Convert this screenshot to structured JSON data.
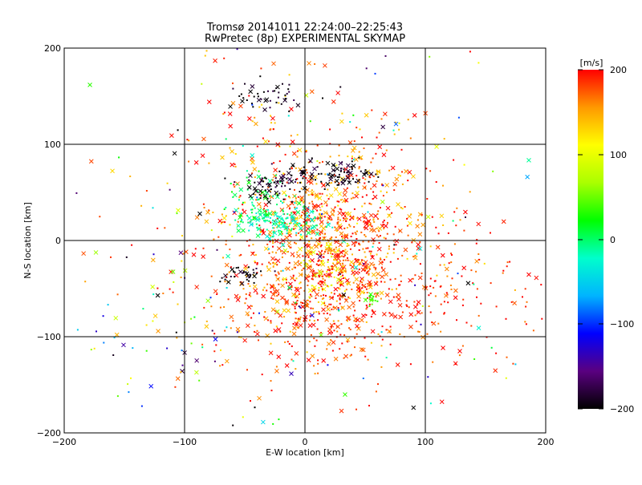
{
  "chart_data": {
    "type": "scatter",
    "title": "Tromsø 20141011 22:24:00–22:25:43",
    "subtitle": "RwPretec (8p) EXPERIMENTAL SKYMAP",
    "xlabel": "E-W location [km]",
    "ylabel": "N-S location [km]",
    "xlim": [
      -200,
      200
    ],
    "ylim": [
      -200,
      200
    ],
    "xticks": [
      "−200",
      "−100",
      "0",
      "100",
      "200"
    ],
    "yticks": [
      "−200",
      "−100",
      "0",
      "100",
      "200"
    ],
    "grid": true,
    "colorbar": {
      "unit": "[m/s]",
      "range": [
        -200,
        200
      ],
      "ticks": [
        "200",
        "100",
        "0",
        "−100",
        "−200"
      ],
      "colors": [
        "#000000",
        "#5a0080",
        "#0000ff",
        "#00b4ff",
        "#00ffcc",
        "#00ff00",
        "#aaff00",
        "#ffff00",
        "#ff9900",
        "#ff0000"
      ]
    },
    "marker_styles": [
      "cross",
      "dot"
    ],
    "clusters": [
      {
        "x": 20,
        "y": -20,
        "sx": 30,
        "sy": 45,
        "n": 650,
        "v": [
          130,
          220
        ]
      },
      {
        "x": 0,
        "y": 40,
        "sx": 55,
        "sy": 55,
        "n": 450,
        "v": [
          120,
          220
        ]
      },
      {
        "x": 90,
        "y": -50,
        "sx": 60,
        "sy": 45,
        "n": 260,
        "v": [
          160,
          220
        ]
      },
      {
        "x": -30,
        "y": -60,
        "sx": 40,
        "sy": 35,
        "n": 150,
        "v": [
          150,
          220
        ]
      },
      {
        "x": -20,
        "y": 20,
        "sx": 18,
        "sy": 8,
        "n": 130,
        "v": [
          -40,
          10
        ]
      },
      {
        "x": -40,
        "y": 40,
        "sx": 15,
        "sy": 15,
        "n": 60,
        "v": [
          -20,
          30
        ]
      },
      {
        "x": -30,
        "y": 55,
        "sx": 12,
        "sy": 8,
        "n": 55,
        "v": [
          -220,
          -170
        ]
      },
      {
        "x": 30,
        "y": 70,
        "sx": 12,
        "sy": 7,
        "n": 65,
        "v": [
          -220,
          -170
        ]
      },
      {
        "x": -5,
        "y": 68,
        "sx": 10,
        "sy": 6,
        "n": 30,
        "v": [
          -220,
          -170
        ]
      },
      {
        "x": -50,
        "y": -35,
        "sx": 8,
        "sy": 6,
        "n": 35,
        "v": [
          -220,
          -170
        ]
      },
      {
        "x": -30,
        "y": 150,
        "sx": 18,
        "sy": 8,
        "n": 45,
        "v": [
          -220,
          -170
        ]
      },
      {
        "x": 10,
        "y": -30,
        "sx": 18,
        "sy": 20,
        "n": 50,
        "v": [
          80,
          120
        ]
      },
      {
        "x": 55,
        "y": -60,
        "sx": 4,
        "sy": 3,
        "n": 15,
        "v": [
          30,
          50
        ]
      },
      {
        "x": 0,
        "y": 0,
        "sx": 110,
        "sy": 110,
        "n": 220,
        "v": [
          -220,
          220
        ]
      },
      {
        "x": -120,
        "y": -110,
        "sx": 40,
        "sy": 40,
        "n": 50,
        "v": [
          -220,
          220
        ]
      }
    ]
  }
}
